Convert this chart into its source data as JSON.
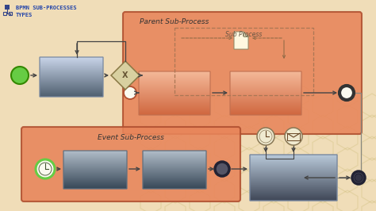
{
  "bg_color": "#f0ddb8",
  "title_line1": "BPMN SUB-PROCESSES",
  "title_line2": "TYPES",
  "title_color": "#2244aa",
  "parent_label": "Parent Sub-Process",
  "event_label": "Event Sub-Process",
  "subprocess_label": "Sub Process",
  "orange_face": "#e8855a",
  "orange_border": "#b05030",
  "gray_top": "#c8d4e8",
  "gray_bot": "#506070",
  "green_start": "#66cc44",
  "green_border": "#338800",
  "arrow_color": "#444444",
  "hex_color": "#d8c89a",
  "inter_event_face": "#f0ead0",
  "inter_event_border": "#887755",
  "end_event_face": "#555566",
  "end_event_border": "#222233",
  "white_face": "#fafaf0",
  "doc_face": "#fff8e0",
  "diamond_face": "#d8d0a0",
  "diamond_border": "#887744"
}
